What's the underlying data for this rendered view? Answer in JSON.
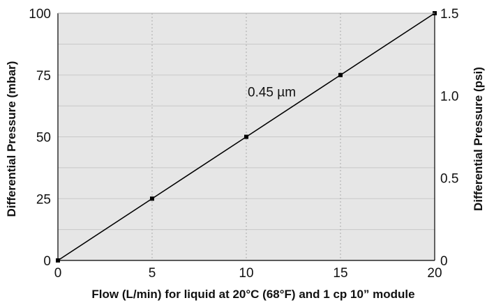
{
  "chart_data": {
    "type": "line",
    "title": "",
    "xlabel": "Flow (L/min) for liquid at 20°C (68°F) and 1 cp 10” module",
    "ylabel": "Differential Pressure (mbar)",
    "y2label": "Differential Pressure (psi)",
    "xlim": [
      0,
      20
    ],
    "ylim": [
      0,
      100
    ],
    "y2lim": [
      0,
      1.5
    ],
    "x_ticks": [
      "0",
      "5",
      "10",
      "15",
      "20"
    ],
    "y_ticks": [
      "0",
      "25",
      "50",
      "75",
      "100"
    ],
    "y2_ticks": [
      "0",
      "0.5",
      "1.0",
      "1.5"
    ],
    "grid": true,
    "background_color": "#e6e6e6",
    "grid_color": "#c8c8c8",
    "line_color": "#000000",
    "series": [
      {
        "name": "0.45 µm",
        "x": [
          0,
          5,
          10,
          15,
          20
        ],
        "y": [
          0,
          25,
          50,
          75,
          100
        ]
      }
    ],
    "annotations": [
      {
        "text": "0.45 µm",
        "x": 10,
        "y": 68
      }
    ]
  }
}
